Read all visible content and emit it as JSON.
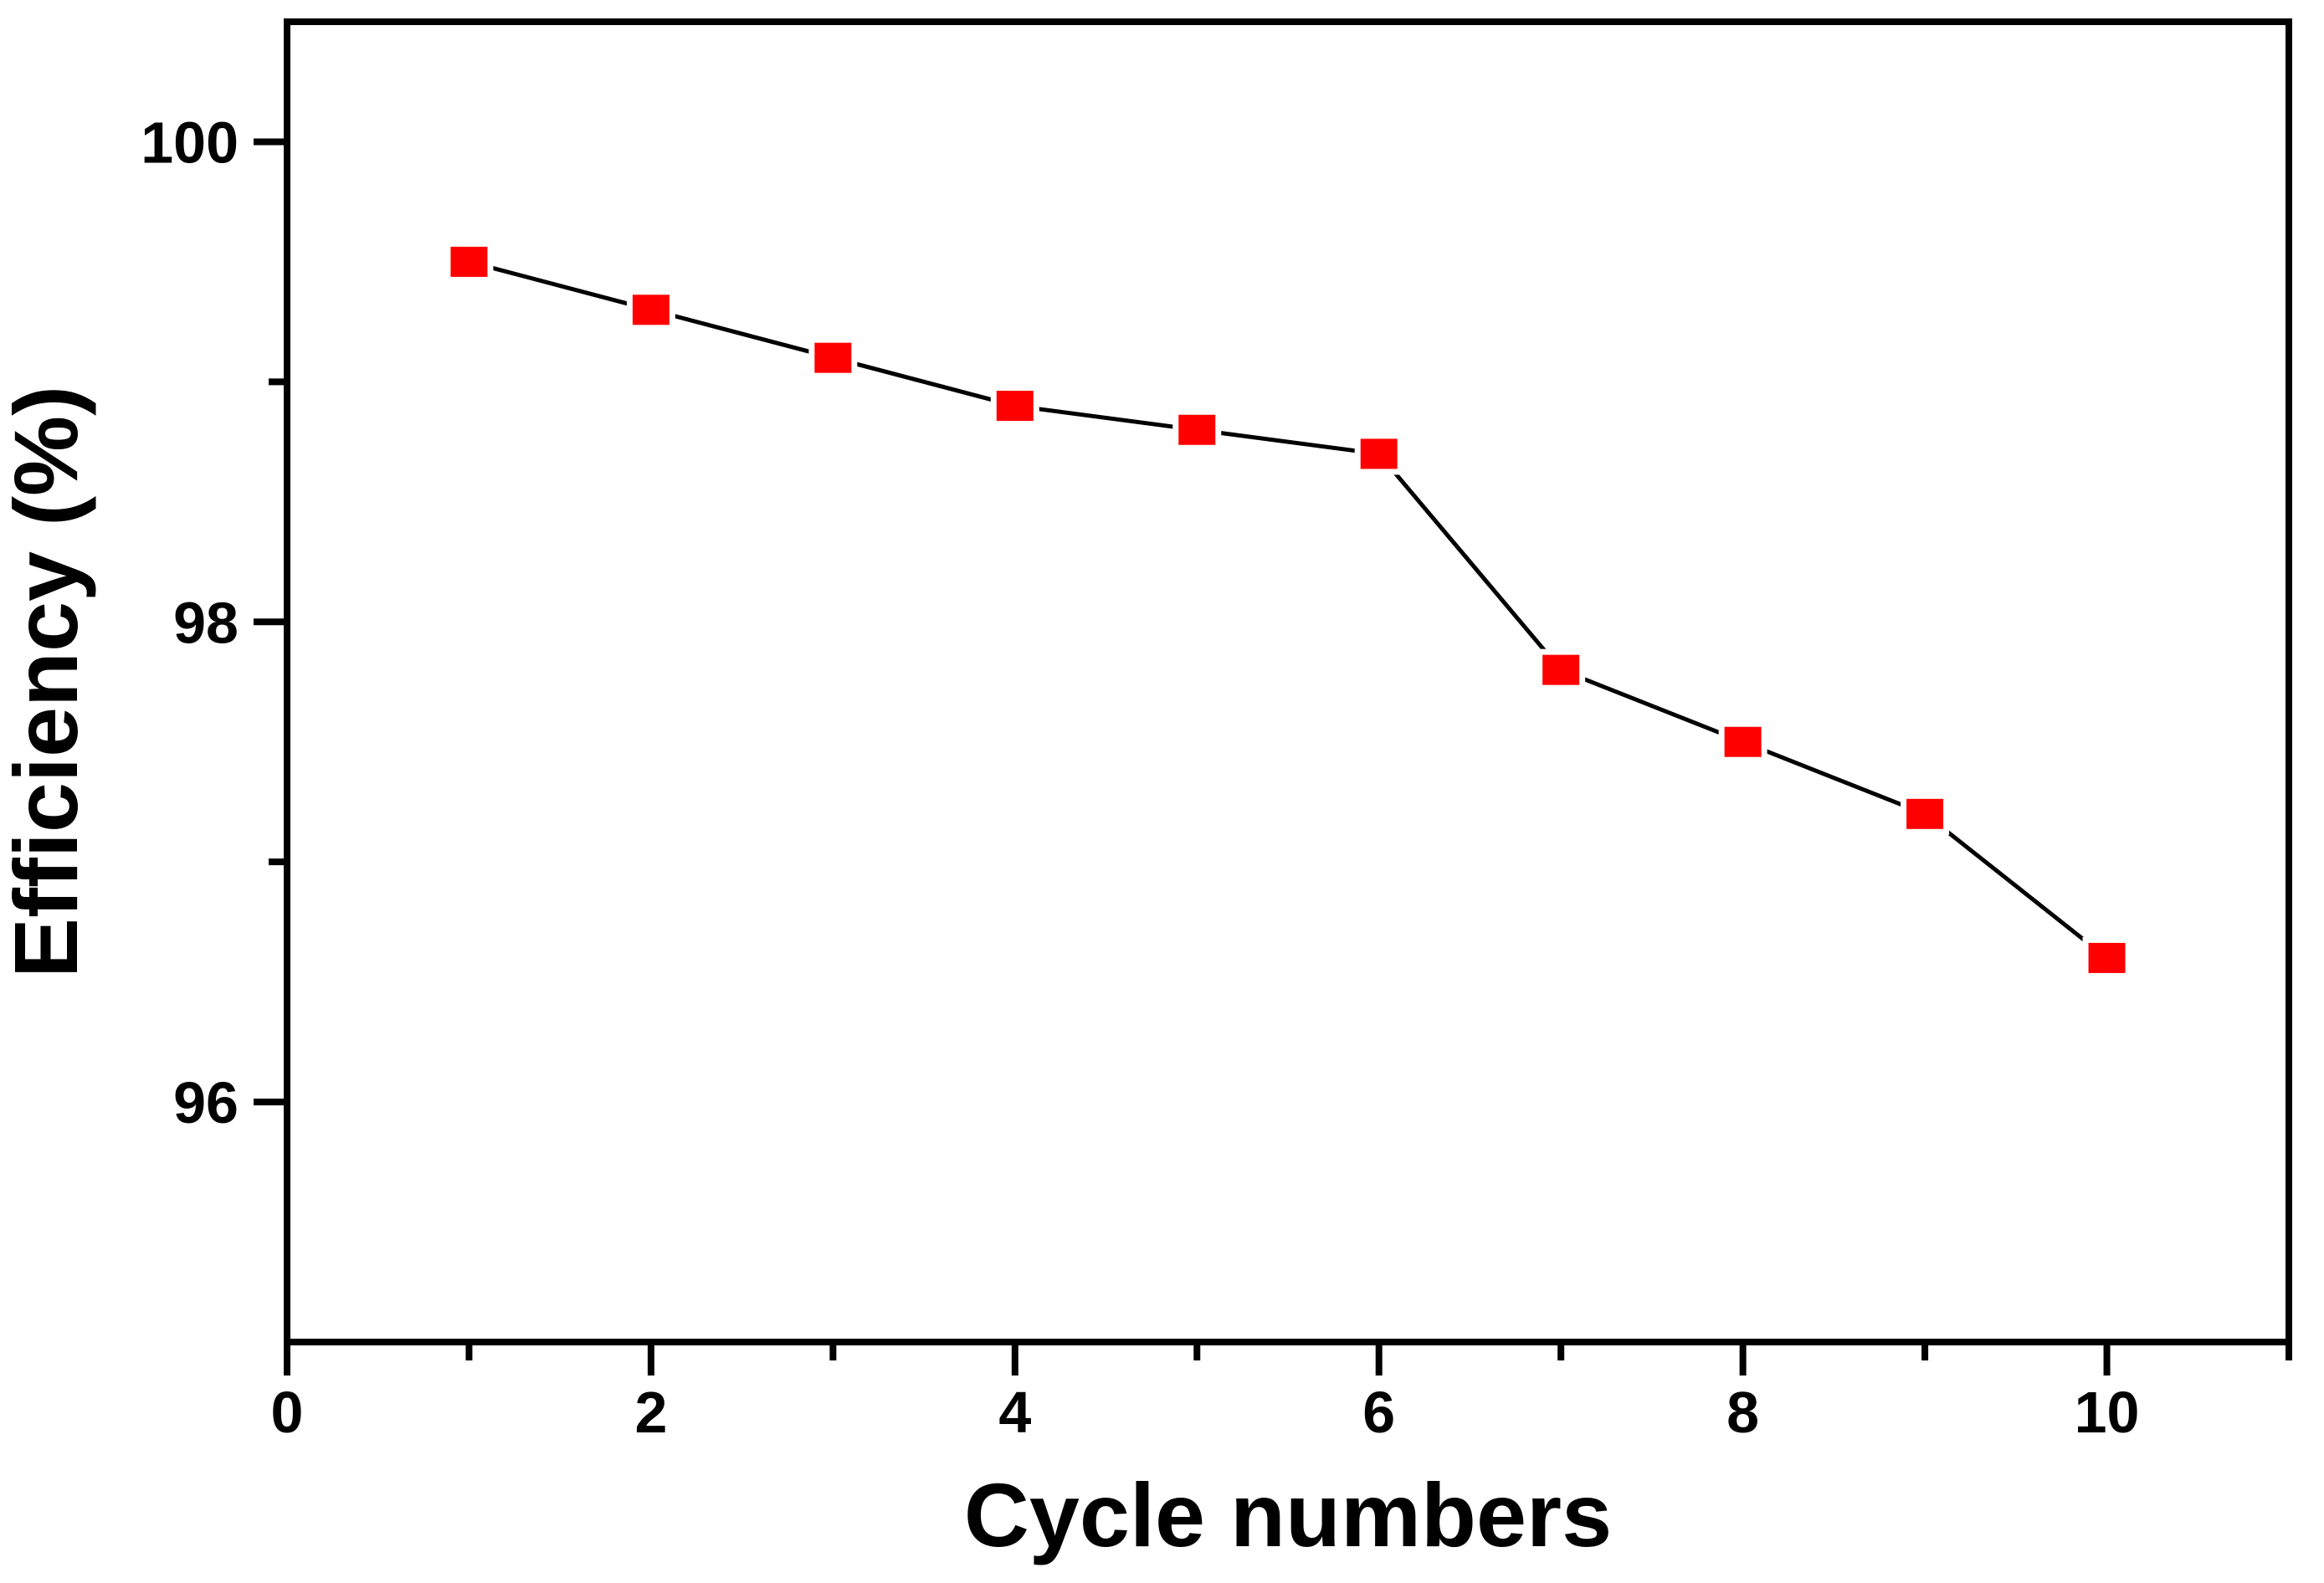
{
  "chart_data": {
    "type": "line",
    "title": "",
    "xlabel": "Cycle numbers",
    "ylabel": "Efficiency (%)",
    "x": [
      1,
      2,
      3,
      4,
      5,
      6,
      7,
      8,
      9,
      10
    ],
    "series": [
      {
        "name": "Efficiency",
        "values": [
          99.5,
          99.3,
          99.1,
          98.9,
          98.8,
          98.7,
          97.8,
          97.5,
          97.2,
          96.6
        ]
      }
    ],
    "xlim": [
      0,
      11
    ],
    "ylim": [
      95,
      100.5
    ],
    "x_major_ticks": {
      "values": [
        0,
        2,
        4,
        6,
        8,
        10
      ],
      "labels": [
        "0",
        "2",
        "4",
        "6",
        "8",
        "10"
      ]
    },
    "x_minor_ticks": [
      1,
      3,
      5,
      7,
      9,
      11
    ],
    "y_major_ticks": {
      "values": [
        100,
        98,
        96
      ],
      "labels": [
        "100",
        "98",
        "96"
      ]
    },
    "y_minor_ticks": [
      99,
      97
    ],
    "grid": false,
    "legend_position": "none",
    "marker_shape": "square",
    "marker_color": "#ff0000",
    "line_color": "#000000",
    "axis_color": "#000000",
    "background_color": "#ffffff"
  }
}
